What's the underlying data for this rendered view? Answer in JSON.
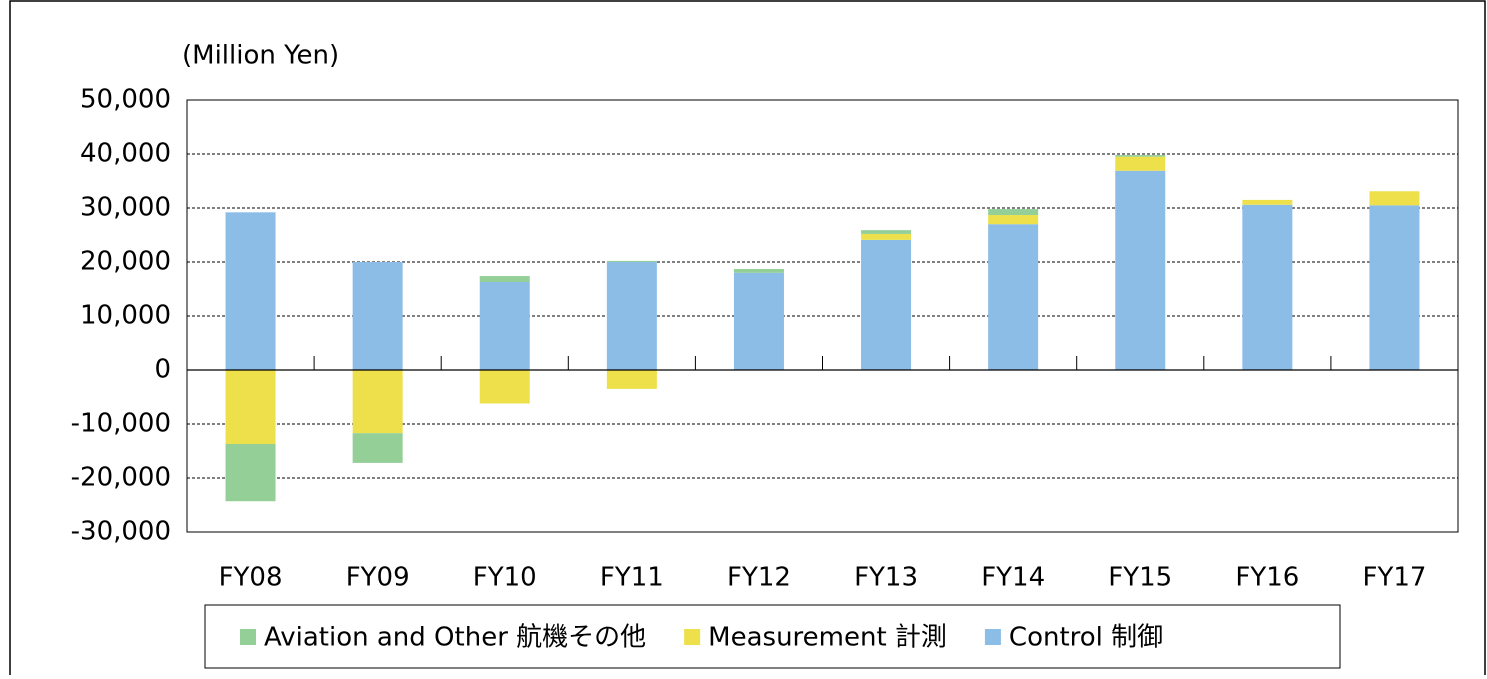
{
  "chart_data": {
    "type": "stacked_bar",
    "y_label": "(Million Yen)",
    "categories": [
      "FY08",
      "FY09",
      "FY10",
      "FY11",
      "FY12",
      "FY13",
      "FY14",
      "FY15",
      "FY16",
      "FY17"
    ],
    "series": [
      {
        "name": "Control 制御",
        "color": "#8bbde6",
        "values": [
          29200,
          20000,
          16300,
          20000,
          18000,
          24100,
          27000,
          36900,
          30600,
          30500
        ]
      },
      {
        "name": "Measurement 計測",
        "color": "#ede04a",
        "values": [
          -13700,
          -11700,
          -6200,
          -3500,
          0,
          1100,
          1700,
          2600,
          900,
          2600
        ]
      },
      {
        "name": "Aviation and Other 航機その他",
        "color": "#93cf96",
        "values": [
          -10600,
          -5500,
          1100,
          200,
          700,
          700,
          1100,
          300,
          0,
          0
        ]
      }
    ],
    "legend_order": [
      2,
      1,
      0
    ],
    "ylim": [
      -30000,
      50000
    ],
    "yticks": [
      {
        "value": -30000,
        "label": "-30,000"
      },
      {
        "value": -20000,
        "label": "-20,000"
      },
      {
        "value": -10000,
        "label": "-10,000"
      },
      0,
      {
        "value": 10000,
        "label": "10,000"
      },
      {
        "value": 20000,
        "label": "20,000"
      },
      {
        "value": 30000,
        "label": "30,000"
      },
      {
        "value": 40000,
        "label": "40,000"
      },
      {
        "value": 50000,
        "label": "50,000"
      }
    ],
    "grid": true
  }
}
